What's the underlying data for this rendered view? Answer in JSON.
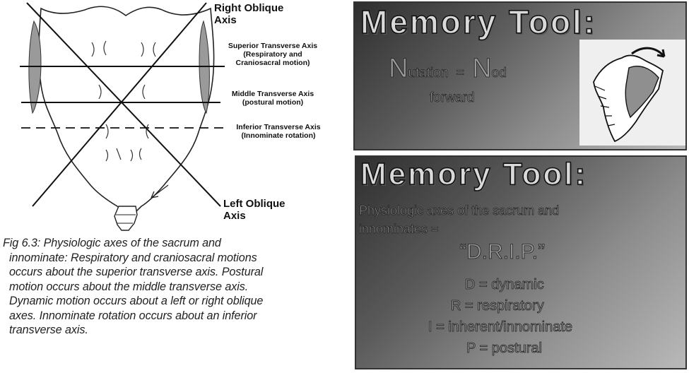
{
  "figure": {
    "labels": {
      "right_oblique": [
        "Right Oblique",
        "Axis"
      ],
      "superior": [
        "Superior Transverse Axis",
        "(Respiratory and",
        "Craniosacral motion)"
      ],
      "middle": [
        "Middle Transverse Axis",
        "(postural motion)"
      ],
      "inferior": [
        "Inferior Transverse Axis",
        "(Innominate rotation)"
      ],
      "left_oblique": [
        "Left Oblique",
        "Axis"
      ]
    },
    "caption": [
      "Fig 6.3:  Physiologic axes of the sacrum and",
      "innominate:  Respiratory and craniosacral motions",
      "occurs about the superior transverse axis.  Postural",
      "motion occurs about the middle transverse axis.",
      "Dynamic motion occurs about a left or right oblique",
      "axes.  Innominate rotation occurs about an inferior",
      "transverse axis."
    ]
  },
  "slide1": {
    "title": "Memory Tool:",
    "n1": "N",
    "rest1": "utation",
    "eq": "=",
    "n2": "N",
    "rest2": "od",
    "line2": "forward"
  },
  "slide2": {
    "title": "Memory Tool:",
    "intro1": "Physiologic axes of the sacrum and",
    "intro2": "innominates =",
    "acronym": "“D.R.I.P.”",
    "items": [
      "D = dynamic",
      "R = respiratory",
      "I = inherent/innominate",
      "P = postural"
    ]
  },
  "colors": {
    "slide_dark": "#2f2f2f",
    "slide_light": "#b9b9b9",
    "title_fill": "#d9d9d9"
  }
}
